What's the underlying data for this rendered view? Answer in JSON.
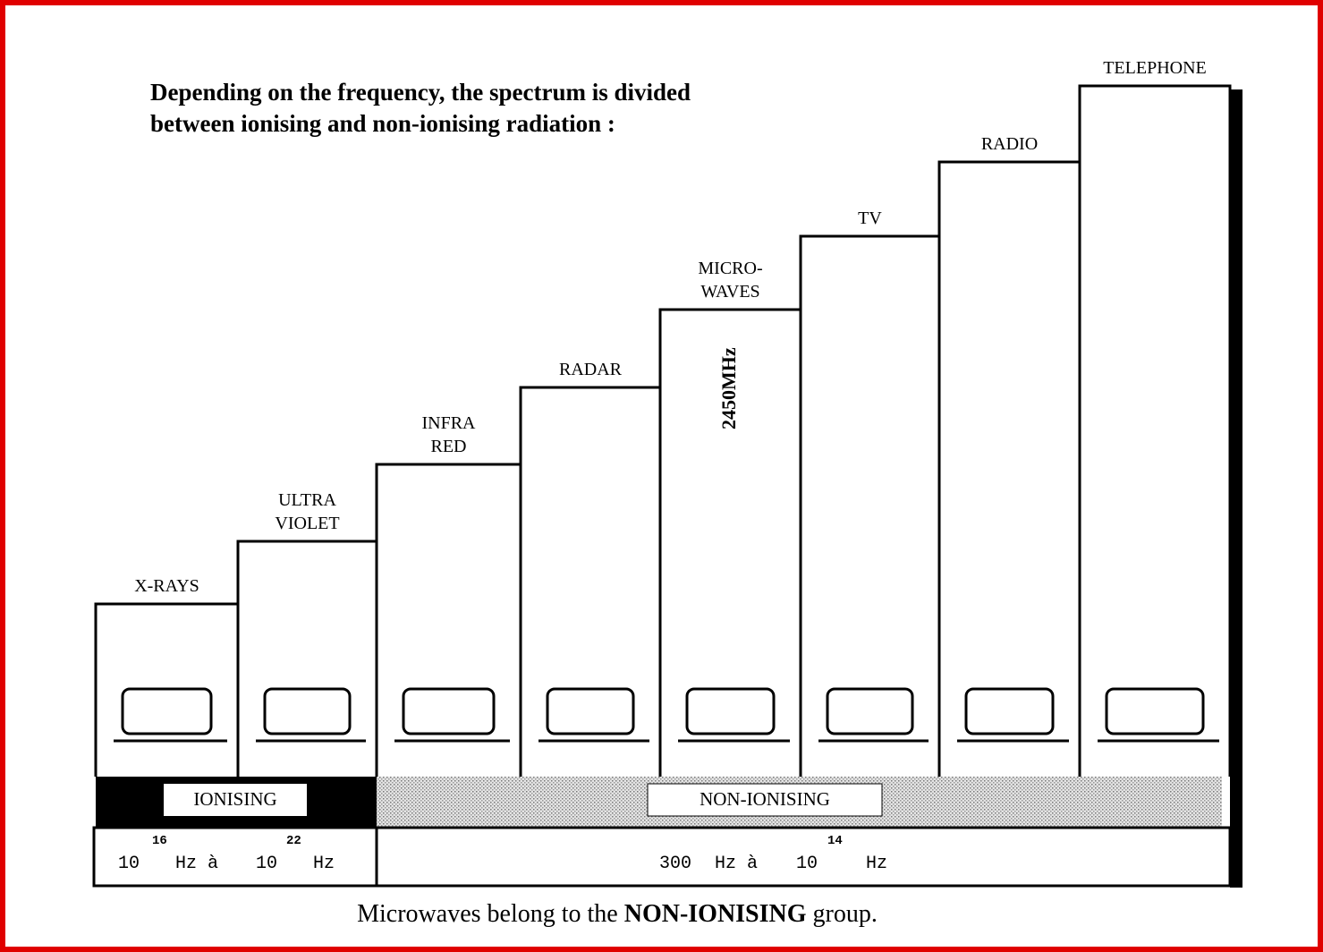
{
  "title": [
    "Depending on the frequency, the spectrum is divided",
    "between ionising and non-ionising radiation :"
  ],
  "columns": [
    {
      "label": [
        "X-RAYS"
      ]
    },
    {
      "label": [
        "ULTRA",
        "VIOLET"
      ]
    },
    {
      "label": [
        "INFRA",
        "RED"
      ]
    },
    {
      "label": [
        "RADAR"
      ]
    },
    {
      "label": [
        "MICRO-",
        "WAVES"
      ]
    },
    {
      "label": [
        "TV"
      ]
    },
    {
      "label": [
        "RADIO"
      ]
    },
    {
      "label": [
        "TELEPHONE"
      ]
    }
  ],
  "microwave_frequency": "2450MHz",
  "groups": [
    {
      "name": "IONISING",
      "range": {
        "from": "10",
        "from_exp": "16",
        "sep": "Hz à",
        "to": "10",
        "to_exp": "22",
        "unit": "Hz"
      }
    },
    {
      "name": "NON-IONISING",
      "range": {
        "from": "300",
        "sep": "Hz à",
        "to": "10",
        "to_exp": "14",
        "unit": "Hz"
      }
    }
  ],
  "footer": {
    "before": "Microwaves belong to the",
    "bold": "NON-IONISING",
    "after": "group."
  }
}
